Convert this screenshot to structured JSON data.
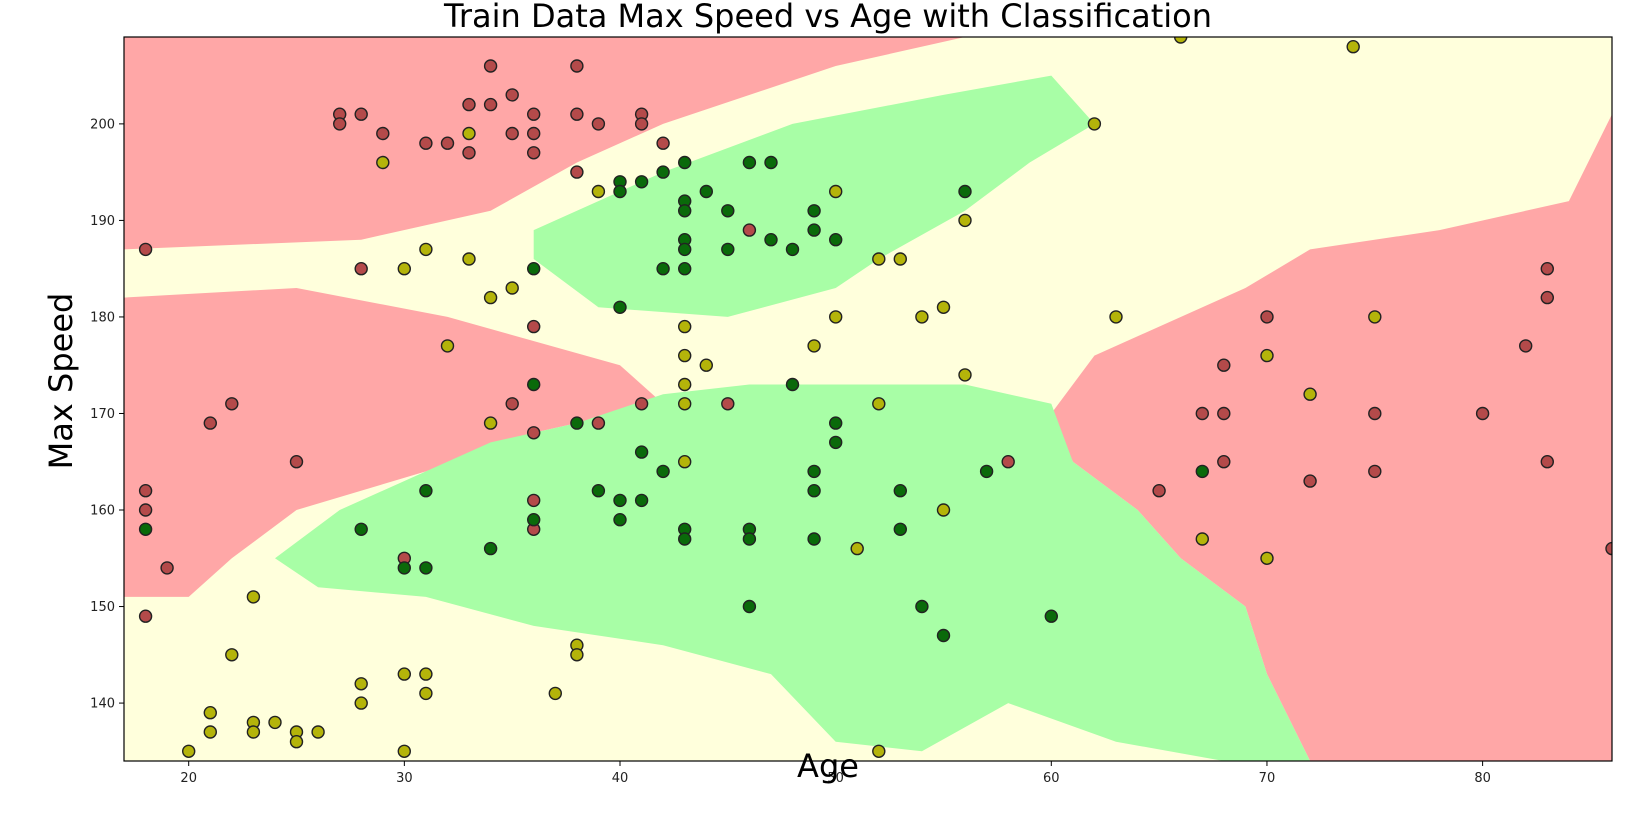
{
  "chart_data": {
    "type": "scatter",
    "title": "Train Data Max Speed vs Age with Classification",
    "xlabel": "Age",
    "ylabel": "Max Speed",
    "xlim": [
      17,
      86
    ],
    "ylim": [
      134,
      209
    ],
    "x_ticks": [
      20,
      30,
      40,
      50,
      60,
      70,
      80
    ],
    "y_ticks": [
      140,
      150,
      160,
      170,
      180,
      190,
      200
    ],
    "grid": false,
    "legend": "none",
    "background": "decision-regions",
    "colors": {
      "region_red": "#ffa7a7",
      "region_green": "#a8fea6",
      "region_yellow": "#ffffdc",
      "point_red": "#b44a4a",
      "point_green": "#0a6a0a",
      "point_yellow": "#b4b40a",
      "point_edge": "#222222"
    },
    "regions": {
      "red": [
        [
          [
            17,
            209
          ],
          [
            56,
            209
          ],
          [
            50,
            206
          ],
          [
            42,
            200
          ],
          [
            38,
            196
          ],
          [
            34,
            191
          ],
          [
            28,
            188
          ],
          [
            17,
            187
          ]
        ],
        [
          [
            17,
            182
          ],
          [
            25,
            183
          ],
          [
            32,
            180
          ],
          [
            40,
            175
          ],
          [
            42,
            171
          ],
          [
            36,
            168
          ],
          [
            31,
            164
          ],
          [
            25,
            160
          ],
          [
            22,
            155
          ],
          [
            20,
            151
          ],
          [
            17,
            151
          ]
        ],
        [
          [
            86,
            201
          ],
          [
            84,
            192
          ],
          [
            78,
            189
          ],
          [
            72,
            187
          ],
          [
            69,
            183
          ],
          [
            62,
            176
          ],
          [
            60,
            170
          ],
          [
            61,
            165
          ],
          [
            64,
            160
          ],
          [
            66,
            155
          ],
          [
            69,
            150
          ],
          [
            70,
            143
          ],
          [
            72,
            134
          ],
          [
            86,
            134
          ]
        ]
      ],
      "green": [
        [
          [
            36,
            189
          ],
          [
            42,
            195
          ],
          [
            48,
            200
          ],
          [
            55,
            203
          ],
          [
            60,
            205
          ],
          [
            62,
            200
          ],
          [
            59,
            196
          ],
          [
            56,
            191
          ],
          [
            52,
            186
          ],
          [
            50,
            183
          ],
          [
            45,
            180
          ],
          [
            39,
            181
          ],
          [
            36,
            186
          ]
        ],
        [
          [
            24,
            155
          ],
          [
            27,
            160
          ],
          [
            31,
            164
          ],
          [
            34,
            167
          ],
          [
            38,
            169
          ],
          [
            42,
            172
          ],
          [
            46,
            173
          ],
          [
            51,
            173
          ],
          [
            56,
            173
          ],
          [
            60,
            171
          ],
          [
            61,
            165
          ],
          [
            64,
            160
          ],
          [
            66,
            155
          ],
          [
            69,
            150
          ],
          [
            70,
            143
          ],
          [
            72,
            134
          ],
          [
            68,
            134
          ],
          [
            63,
            136
          ],
          [
            58,
            140
          ],
          [
            54,
            135
          ],
          [
            50,
            136
          ],
          [
            47,
            143
          ],
          [
            42,
            146
          ],
          [
            36,
            148
          ],
          [
            31,
            151
          ],
          [
            26,
            152
          ]
        ]
      ]
    },
    "series": [
      {
        "class": "red",
        "points": [
          [
            18,
            187
          ],
          [
            27,
            201
          ],
          [
            27,
            200
          ],
          [
            28,
            201
          ],
          [
            29,
            199
          ],
          [
            31,
            198
          ],
          [
            32,
            198
          ],
          [
            33,
            202
          ],
          [
            33,
            197
          ],
          [
            34,
            206
          ],
          [
            34,
            202
          ],
          [
            35,
            203
          ],
          [
            35,
            199
          ],
          [
            36,
            201
          ],
          [
            36,
            199
          ],
          [
            36,
            197
          ],
          [
            38,
            206
          ],
          [
            38,
            201
          ],
          [
            38,
            195
          ],
          [
            39,
            200
          ],
          [
            41,
            201
          ],
          [
            41,
            200
          ],
          [
            42,
            198
          ],
          [
            46,
            189
          ],
          [
            28,
            185
          ],
          [
            36,
            179
          ],
          [
            22,
            171
          ],
          [
            21,
            169
          ],
          [
            25,
            165
          ],
          [
            18,
            162
          ],
          [
            18,
            160
          ],
          [
            19,
            154
          ],
          [
            18,
            149
          ],
          [
            35,
            171
          ],
          [
            36,
            168
          ],
          [
            36,
            161
          ],
          [
            36,
            158
          ],
          [
            39,
            169
          ],
          [
            41,
            171
          ],
          [
            45,
            171
          ],
          [
            30,
            155
          ],
          [
            58,
            165
          ],
          [
            65,
            162
          ],
          [
            67,
            170
          ],
          [
            68,
            175
          ],
          [
            68,
            170
          ],
          [
            68,
            165
          ],
          [
            70,
            180
          ],
          [
            72,
            163
          ],
          [
            75,
            170
          ],
          [
            75,
            164
          ],
          [
            80,
            170
          ],
          [
            82,
            177
          ],
          [
            83,
            185
          ],
          [
            83,
            182
          ],
          [
            83,
            165
          ],
          [
            86,
            156
          ]
        ]
      },
      {
        "class": "green",
        "points": [
          [
            40,
            194
          ],
          [
            40,
            193
          ],
          [
            41,
            194
          ],
          [
            42,
            195
          ],
          [
            43,
            196
          ],
          [
            43,
            192
          ],
          [
            43,
            191
          ],
          [
            43,
            188
          ],
          [
            43,
            187
          ],
          [
            43,
            185
          ],
          [
            42,
            185
          ],
          [
            44,
            193
          ],
          [
            45,
            191
          ],
          [
            45,
            187
          ],
          [
            46,
            196
          ],
          [
            47,
            196
          ],
          [
            47,
            188
          ],
          [
            48,
            187
          ],
          [
            49,
            191
          ],
          [
            49,
            189
          ],
          [
            50,
            188
          ],
          [
            56,
            193
          ],
          [
            36,
            185
          ],
          [
            40,
            181
          ],
          [
            36,
            173
          ],
          [
            48,
            173
          ],
          [
            38,
            169
          ],
          [
            50,
            169
          ],
          [
            50,
            167
          ],
          [
            41,
            166
          ],
          [
            42,
            164
          ],
          [
            39,
            162
          ],
          [
            40,
            161
          ],
          [
            41,
            161
          ],
          [
            40,
            159
          ],
          [
            36,
            159
          ],
          [
            43,
            158
          ],
          [
            43,
            157
          ],
          [
            46,
            158
          ],
          [
            46,
            157
          ],
          [
            49,
            164
          ],
          [
            49,
            162
          ],
          [
            49,
            157
          ],
          [
            53,
            162
          ],
          [
            53,
            158
          ],
          [
            57,
            164
          ],
          [
            67,
            164
          ],
          [
            31,
            162
          ],
          [
            28,
            158
          ],
          [
            18,
            158
          ],
          [
            34,
            156
          ],
          [
            30,
            154
          ],
          [
            31,
            154
          ],
          [
            46,
            150
          ],
          [
            54,
            150
          ],
          [
            55,
            147
          ],
          [
            60,
            149
          ]
        ]
      },
      {
        "class": "yellow",
        "points": [
          [
            66,
            209
          ],
          [
            74,
            208
          ],
          [
            62,
            200
          ],
          [
            33,
            199
          ],
          [
            29,
            196
          ],
          [
            39,
            193
          ],
          [
            50,
            193
          ],
          [
            56,
            190
          ],
          [
            30,
            185
          ],
          [
            31,
            187
          ],
          [
            33,
            186
          ],
          [
            34,
            182
          ],
          [
            35,
            183
          ],
          [
            52,
            186
          ],
          [
            53,
            186
          ],
          [
            32,
            177
          ],
          [
            43,
            179
          ],
          [
            43,
            176
          ],
          [
            44,
            175
          ],
          [
            49,
            177
          ],
          [
            50,
            180
          ],
          [
            54,
            180
          ],
          [
            55,
            181
          ],
          [
            63,
            180
          ],
          [
            56,
            174
          ],
          [
            43,
            173
          ],
          [
            43,
            171
          ],
          [
            52,
            171
          ],
          [
            34,
            169
          ],
          [
            43,
            165
          ],
          [
            55,
            160
          ],
          [
            51,
            156
          ],
          [
            67,
            157
          ],
          [
            70,
            176
          ],
          [
            70,
            155
          ],
          [
            72,
            172
          ],
          [
            75,
            180
          ],
          [
            23,
            151
          ],
          [
            22,
            145
          ],
          [
            21,
            139
          ],
          [
            21,
            137
          ],
          [
            20,
            135
          ],
          [
            23,
            138
          ],
          [
            23,
            137
          ],
          [
            24,
            138
          ],
          [
            25,
            137
          ],
          [
            25,
            136
          ],
          [
            26,
            137
          ],
          [
            28,
            142
          ],
          [
            28,
            140
          ],
          [
            30,
            143
          ],
          [
            30,
            135
          ],
          [
            31,
            143
          ],
          [
            31,
            141
          ],
          [
            37,
            141
          ],
          [
            38,
            146
          ],
          [
            38,
            145
          ],
          [
            52,
            135
          ]
        ]
      }
    ]
  }
}
